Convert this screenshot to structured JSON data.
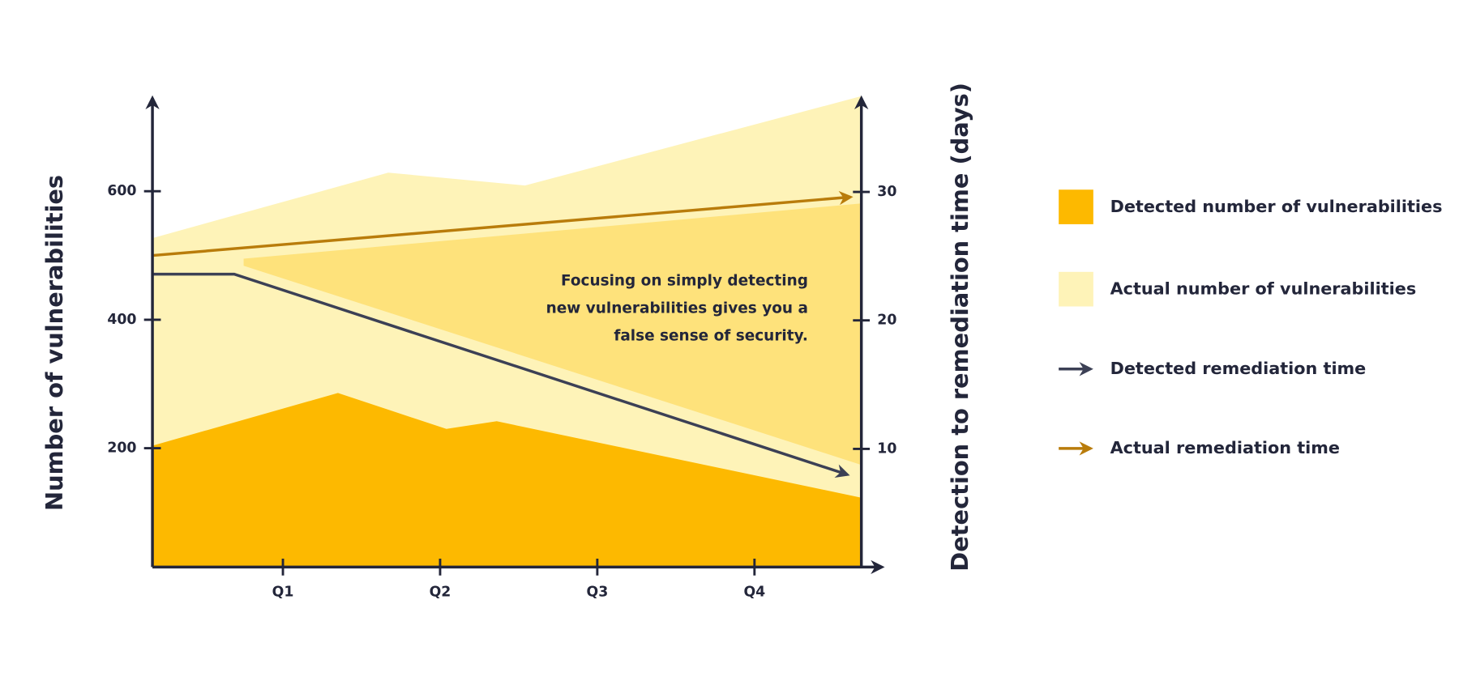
{
  "chart_data": {
    "type": "area",
    "xlim": [
      0.17,
      4.68
    ],
    "xticks": [
      {
        "value": 1,
        "label": "Q1"
      },
      {
        "value": 2,
        "label": "Q2"
      },
      {
        "value": 3,
        "label": "Q3"
      },
      {
        "value": 4,
        "label": "Q4"
      }
    ],
    "ylim": [
      15,
      745
    ],
    "yticks": [
      200,
      400,
      600
    ],
    "y2lim": [
      0.8,
      37.3
    ],
    "y2ticks": [
      10,
      20,
      30
    ],
    "ylabel": "Number of vulnerabilities",
    "y2label": "Detection to remediation time (days)",
    "annotation": [
      "Focusing on simply detecting",
      "new vulnerabilities gives you a",
      "false sense of security."
    ],
    "band": {
      "color": "#fee27b",
      "x": [
        0.75,
        4.68
      ],
      "upper": [
        495,
        581
      ],
      "lower": [
        484,
        174
      ]
    },
    "series": [
      {
        "name": "Detected number of vulnerabilities",
        "type": "area",
        "color": "#fdb900",
        "x": [
          0.17,
          1.35,
          2.04,
          2.36,
          4.68
        ],
        "values": [
          204,
          286,
          230,
          242,
          123
        ]
      },
      {
        "name": "Actual number of vulnerabilities",
        "type": "area",
        "color": "#fef3b8",
        "x": [
          0.17,
          1.67,
          2.54,
          4.68
        ],
        "values": [
          527,
          629,
          609,
          748
        ]
      },
      {
        "name": "Detected remediation time",
        "type": "line",
        "axis": "y2",
        "color": "#3c4055",
        "x": [
          0.17,
          0.69,
          4.59
        ],
        "values": [
          23.6,
          23.6,
          8.0
        ]
      },
      {
        "name": "Actual remediation time",
        "type": "line",
        "axis": "y2",
        "color": "#b97c0b",
        "x": [
          0.17,
          4.61
        ],
        "values": [
          25.05,
          29.6
        ]
      }
    ]
  }
}
